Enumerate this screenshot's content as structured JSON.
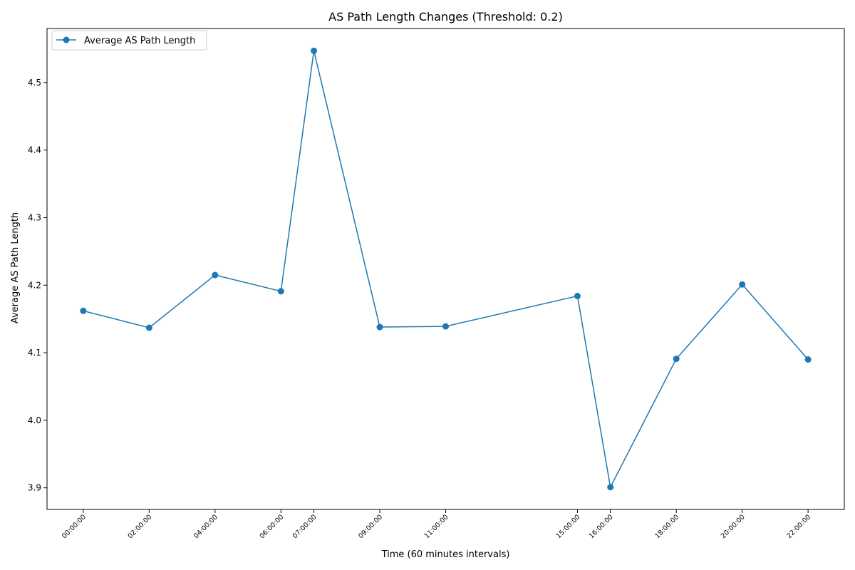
{
  "chart_data": {
    "type": "line",
    "title": "AS Path Length Changes (Threshold: 0.2)",
    "xlabel": "Time (60 minutes intervals)",
    "ylabel": "Average AS Path Length",
    "x_hours": [
      0,
      2,
      4,
      6,
      7,
      9,
      11,
      15,
      16,
      18,
      20,
      22
    ],
    "x_tick_labels": [
      "00:00:00",
      "02:00:00",
      "04:00:00",
      "06:00:00",
      "07:00:00",
      "09:00:00",
      "11:00:00",
      "15:00:00",
      "16:00:00",
      "18:00:00",
      "20:00:00",
      "22:00:00"
    ],
    "series": [
      {
        "name": "Average AS Path Length",
        "values": [
          4.162,
          4.137,
          4.215,
          4.191,
          4.547,
          4.138,
          4.139,
          4.184,
          3.901,
          4.091,
          4.201,
          4.09
        ]
      }
    ],
    "y_ticks": [
      3.9,
      4.0,
      4.1,
      4.2,
      4.3,
      4.4,
      4.5
    ],
    "y_tick_labels": [
      "3.9",
      "4.0",
      "4.1",
      "4.2",
      "4.3",
      "4.4",
      "4.5"
    ],
    "ylim": [
      3.868,
      4.58
    ],
    "xlim": [
      -1.1,
      23.1
    ],
    "grid": false,
    "legend_position": "upper left",
    "colors": {
      "line": "#1f77b4",
      "axes": "#000000"
    }
  }
}
